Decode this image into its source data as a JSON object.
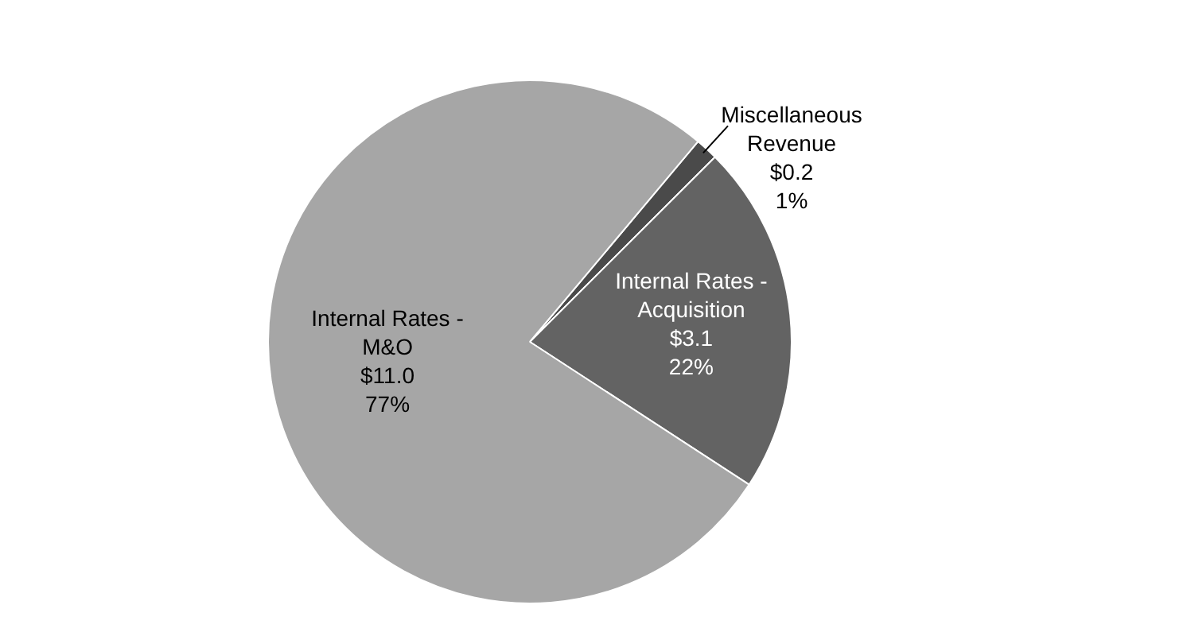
{
  "chart_data": {
    "type": "pie",
    "categories": [
      "Miscellaneous Revenue",
      "Internal Rates - Acquisition",
      "Internal Rates - M&O"
    ],
    "values": [
      0.2,
      3.1,
      11.0
    ],
    "colors": [
      "#4a4a4a",
      "#636363",
      "#a6a6a6"
    ],
    "value_labels": [
      "$0.2\n1%",
      "$3.1\n22%",
      "$11.0\n77%"
    ]
  }
}
